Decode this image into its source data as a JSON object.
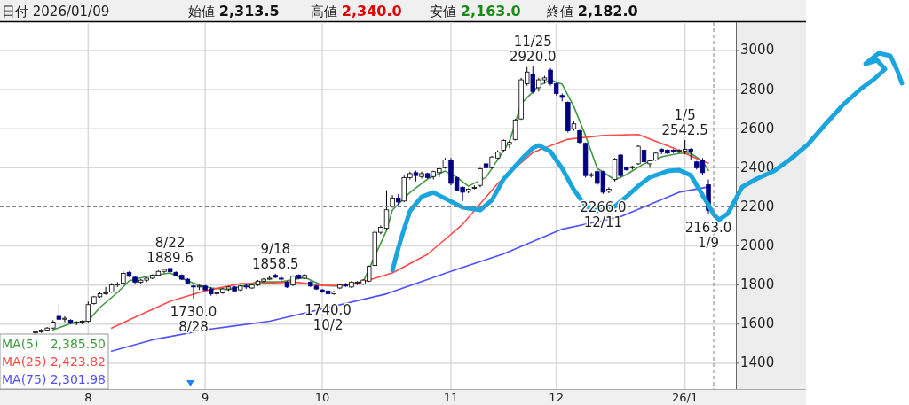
{
  "chart_data": {
    "type": "candlestick",
    "categories": [
      null,
      null,
      null,
      null,
      null,
      null,
      null,
      null,
      null,
      "8",
      null,
      null,
      null,
      null,
      null,
      null,
      null,
      null,
      null,
      null,
      null,
      null,
      null,
      null,
      null,
      null,
      null,
      null,
      null,
      "9",
      null,
      null,
      null,
      null,
      null,
      null,
      null,
      null,
      null,
      null,
      null,
      null,
      null,
      null,
      null,
      null,
      null,
      null,
      null,
      "10",
      null,
      null,
      null,
      null,
      null,
      null,
      null,
      null,
      null,
      null,
      null,
      null,
      null,
      null,
      null,
      null,
      null,
      null,
      null,
      null,
      null,
      "11",
      null,
      null,
      null,
      null,
      null,
      null,
      null,
      null,
      null,
      null,
      null,
      null,
      null,
      null,
      null,
      null,
      null,
      "12",
      null,
      null,
      null,
      null,
      null,
      null,
      null,
      null,
      null,
      null,
      null,
      null,
      null,
      null,
      null,
      null,
      null,
      null,
      null,
      null,
      null,
      "26/1",
      null,
      null,
      null,
      null
    ],
    "ohlc": [
      [
        1555,
        1565,
        1545,
        1560
      ],
      [
        1560,
        1575,
        1555,
        1570
      ],
      [
        1570,
        1585,
        1565,
        1580
      ],
      [
        1580,
        1620,
        1575,
        1610
      ],
      [
        1640,
        1700,
        1620,
        1625
      ],
      [
        1625,
        1640,
        1610,
        1630
      ],
      [
        1620,
        1625,
        1600,
        1605
      ],
      [
        1605,
        1615,
        1595,
        1610
      ],
      [
        1610,
        1620,
        1600,
        1615
      ],
      [
        1615,
        1715,
        1605,
        1700
      ],
      [
        1705,
        1745,
        1700,
        1740
      ],
      [
        1740,
        1765,
        1735,
        1755
      ],
      [
        1755,
        1790,
        1750,
        1760
      ],
      [
        1765,
        1810,
        1760,
        1800
      ],
      [
        1800,
        1815,
        1790,
        1805
      ],
      [
        1810,
        1870,
        1805,
        1860
      ],
      [
        1865,
        1870,
        1840,
        1845
      ],
      [
        1840,
        1845,
        1805,
        1815
      ],
      [
        1815,
        1830,
        1805,
        1825
      ],
      [
        1825,
        1840,
        1815,
        1835
      ],
      [
        1835,
        1855,
        1830,
        1850
      ],
      [
        1850,
        1875,
        1845,
        1870
      ],
      [
        1870,
        1885,
        1860,
        1880
      ],
      [
        1885,
        1889.6,
        1865,
        1868
      ],
      [
        1865,
        1870,
        1845,
        1850
      ],
      [
        1850,
        1855,
        1825,
        1830
      ],
      [
        1830,
        1835,
        1805,
        1810
      ],
      [
        1795,
        1800,
        1730.0,
        1790
      ],
      [
        1790,
        1800,
        1775,
        1795
      ],
      [
        1795,
        1800,
        1770,
        1775
      ],
      [
        1780,
        1790,
        1745,
        1755
      ],
      [
        1755,
        1770,
        1742,
        1760
      ],
      [
        1760,
        1785,
        1755,
        1780
      ],
      [
        1780,
        1795,
        1770,
        1790
      ],
      [
        1790,
        1795,
        1765,
        1770
      ],
      [
        1775,
        1800,
        1770,
        1795
      ],
      [
        1795,
        1805,
        1780,
        1790
      ],
      [
        1785,
        1805,
        1780,
        1800
      ],
      [
        1800,
        1825,
        1795,
        1820
      ],
      [
        1820,
        1835,
        1815,
        1830
      ],
      [
        1830,
        1845,
        1825,
        1835
      ],
      [
        1850,
        1858.5,
        1835,
        1840
      ],
      [
        1835,
        1845,
        1820,
        1830
      ],
      [
        1815,
        1820,
        1785,
        1790
      ],
      [
        1800,
        1850,
        1795,
        1845
      ],
      [
        1850,
        1855,
        1830,
        1835
      ],
      [
        1835,
        1855,
        1830,
        1850
      ],
      [
        1815,
        1820,
        1790,
        1795
      ],
      [
        1795,
        1800,
        1775,
        1780
      ],
      [
        1775,
        1780,
        1760,
        1765
      ],
      [
        1770,
        1775,
        1740.0,
        1755
      ],
      [
        1755,
        1770,
        1750,
        1765
      ],
      [
        1785,
        1805,
        1780,
        1800
      ],
      [
        1800,
        1810,
        1790,
        1795
      ],
      [
        1790,
        1820,
        1785,
        1815
      ],
      [
        1810,
        1820,
        1800,
        1815
      ],
      [
        1805,
        1830,
        1800,
        1825
      ],
      [
        1820,
        1900,
        1815,
        1895
      ],
      [
        1900,
        2080,
        1895,
        2070
      ],
      [
        2070,
        2105,
        2060,
        2095
      ],
      [
        2090,
        2285,
        2080,
        2185
      ],
      [
        2200,
        2260,
        2195,
        2245
      ],
      [
        2245,
        2265,
        2210,
        2225
      ],
      [
        2230,
        2360,
        2225,
        2350
      ],
      [
        2350,
        2380,
        2340,
        2370
      ],
      [
        2375,
        2385,
        2330,
        2360
      ],
      [
        2355,
        2380,
        2345,
        2370
      ],
      [
        2370,
        2375,
        2345,
        2350
      ],
      [
        2355,
        2385,
        2340,
        2380
      ],
      [
        2375,
        2400,
        2350,
        2395
      ],
      [
        2400,
        2450,
        2395,
        2440
      ],
      [
        2440,
        2450,
        2310,
        2320
      ],
      [
        2350,
        2355,
        2280,
        2285
      ],
      [
        2300,
        2305,
        2230,
        2275
      ],
      [
        2280,
        2295,
        2270,
        2290
      ],
      [
        2295,
        2310,
        2290,
        2300
      ],
      [
        2310,
        2400,
        2300,
        2395
      ],
      [
        2420,
        2430,
        2390,
        2400
      ],
      [
        2400,
        2460,
        2395,
        2455
      ],
      [
        2450,
        2490,
        2445,
        2480
      ],
      [
        2490,
        2545,
        2485,
        2540
      ],
      [
        2520,
        2540,
        2500,
        2530
      ],
      [
        2545,
        2650,
        2540,
        2645
      ],
      [
        2650,
        2860,
        2645,
        2850
      ],
      [
        2830,
        2915,
        2820,
        2890
      ],
      [
        2880,
        2920.0,
        2780,
        2790
      ],
      [
        2810,
        2860,
        2790,
        2850
      ],
      [
        2850,
        2870,
        2830,
        2860
      ],
      [
        2900,
        2910,
        2820,
        2830
      ],
      [
        2830,
        2835,
        2770,
        2780
      ],
      [
        2770,
        2780,
        2740,
        2760
      ],
      [
        2735,
        2740,
        2580,
        2590
      ],
      [
        2600,
        2640,
        2590,
        2625
      ],
      [
        2590,
        2595,
        2520,
        2530
      ],
      [
        2525,
        2530,
        2350,
        2360
      ],
      [
        2360,
        2375,
        2350,
        2365
      ],
      [
        2380,
        2390,
        2310,
        2320
      ],
      [
        2380,
        2385,
        2266.0,
        2275
      ],
      [
        2280,
        2300,
        2270,
        2290
      ],
      [
        2340,
        2450,
        2330,
        2445
      ],
      [
        2465,
        2470,
        2350,
        2360
      ],
      [
        2400,
        2405,
        2385,
        2390
      ],
      [
        2400,
        2410,
        2390,
        2405
      ],
      [
        2420,
        2515,
        2415,
        2510
      ],
      [
        2490,
        2495,
        2420,
        2430
      ],
      [
        2420,
        2440,
        2400,
        2435
      ],
      [
        2440,
        2480,
        2435,
        2475
      ],
      [
        2495,
        2500,
        2470,
        2480
      ],
      [
        2490,
        2495,
        2470,
        2475
      ],
      [
        2490,
        2495,
        2475,
        2485
      ],
      [
        2485,
        2495,
        2475,
        2490
      ],
      [
        2485,
        2542.5,
        2470,
        2495
      ],
      [
        2495,
        2500,
        2440,
        2480
      ],
      [
        2430,
        2435,
        2390,
        2400
      ],
      [
        2440,
        2450,
        2360,
        2375
      ],
      [
        2313.5,
        2340.0,
        2163.0,
        2182.0
      ]
    ],
    "series": [
      {
        "name": "MA(5) 2,385.50",
        "color": "#3f9a3f",
        "type": "line",
        "values": [
          null,
          null,
          null,
          1571,
          null,
          null,
          1603,
          null,
          null,
          1617,
          null,
          1685,
          null,
          null,
          1762,
          null,
          1821,
          null,
          null,
          1844,
          null,
          null,
          null,
          1862,
          null,
          null,
          1821,
          null,
          1798,
          null,
          1785,
          null,
          null,
          1776,
          null,
          null,
          null,
          null,
          1816,
          null,
          null,
          null,
          1816,
          null,
          null,
          null,
          1839,
          null,
          null,
          1798,
          null,
          null,
          1794,
          null,
          null,
          null,
          1816,
          null,
          null,
          null,
          2080,
          2184,
          null,
          null,
          2274,
          null,
          null,
          2342,
          null,
          null,
          2383,
          null,
          2351,
          null,
          2306,
          null,
          null,
          2351,
          null,
          2442,
          null,
          2533,
          null,
          2728,
          null,
          null,
          2819,
          null,
          2850,
          null,
          2828,
          null,
          2714,
          null,
          2565,
          null,
          2397,
          null,
          null,
          2338,
          null,
          2365,
          null,
          null,
          2420,
          null,
          null,
          2456,
          null,
          null,
          2474,
          null,
          2474,
          null,
          2433,
          2386
        ]
      },
      {
        "name": "MA(25) 2,423.82",
        "color": "#ff4a4a",
        "type": "line",
        "values": [
          null,
          null,
          null,
          null,
          null,
          null,
          null,
          null,
          null,
          null,
          null,
          null,
          null,
          1580,
          null,
          null,
          null,
          1635,
          null,
          null,
          null,
          null,
          null,
          1717,
          null,
          null,
          null,
          null,
          null,
          1771,
          null,
          null,
          null,
          null,
          null,
          1807,
          null,
          null,
          1807,
          null,
          null,
          null,
          null,
          null,
          1816,
          null,
          null,
          null,
          null,
          1798,
          null,
          null,
          1798,
          null,
          null,
          null,
          1816,
          null,
          null,
          null,
          null,
          1862,
          null,
          null,
          null,
          null,
          null,
          1957,
          null,
          null,
          null,
          null,
          null,
          2111,
          null,
          null,
          null,
          null,
          null,
          2320,
          null,
          null,
          null,
          null,
          null,
          2478,
          null,
          null,
          null,
          null,
          null,
          2546,
          null,
          null,
          null,
          null,
          null,
          2565,
          null,
          null,
          null,
          null,
          null,
          2570,
          null,
          null,
          null,
          null,
          null,
          2501,
          null,
          null,
          null,
          null,
          2433,
          2424
        ]
      },
      {
        "name": "MA(75) 2,301.98",
        "color": "#5050ff",
        "type": "line",
        "values": [
          null,
          null,
          null,
          null,
          null,
          null,
          null,
          null,
          null,
          null,
          null,
          null,
          null,
          1462,
          null,
          null,
          null,
          null,
          null,
          null,
          1520,
          null,
          null,
          null,
          null,
          null,
          null,
          null,
          null,
          null,
          1575,
          null,
          null,
          null,
          null,
          null,
          null,
          null,
          null,
          null,
          1615,
          null,
          null,
          null,
          null,
          null,
          null,
          null,
          null,
          null,
          null,
          null,
          null,
          null,
          null,
          null,
          null,
          null,
          null,
          null,
          1755,
          null,
          null,
          null,
          null,
          null,
          null,
          null,
          null,
          null,
          1860,
          null,
          null,
          null,
          null,
          null,
          null,
          null,
          null,
          null,
          1960,
          null,
          null,
          null,
          null,
          null,
          null,
          null,
          null,
          null,
          2086,
          null,
          null,
          null,
          null,
          null,
          null,
          null,
          null,
          null,
          2150,
          null,
          null,
          null,
          null,
          null,
          null,
          null,
          null,
          null,
          2275,
          null,
          null,
          null,
          null,
          2302
        ]
      },
      {
        "color": "#1aa5df",
        "type": "line",
        "values": [
          null,
          null,
          null,
          null,
          null,
          null,
          null,
          null,
          null,
          null,
          null,
          null,
          null,
          null,
          null,
          null,
          null,
          null,
          null,
          null,
          null,
          null,
          null,
          null,
          null,
          null,
          null,
          null,
          null,
          null,
          null,
          null,
          null,
          null,
          null,
          null,
          null,
          null,
          null,
          null,
          null,
          null,
          null,
          null,
          null,
          null,
          null,
          null,
          null,
          null,
          null,
          null,
          null,
          null,
          null,
          null,
          null,
          null,
          null,
          null,
          null,
          1875,
          1989,
          2088,
          2179,
          null,
          2252,
          null,
          2274,
          null,
          2243,
          null,
          null,
          2197,
          null,
          null,
          2184,
          null,
          2234,
          null,
          2342,
          null,
          null,
          2442,
          null,
          2501,
          2515,
          null,
          2483,
          null,
          2397,
          null,
          2288,
          null,
          2206,
          null,
          2179,
          null,
          null,
          2202,
          null,
          2252,
          null,
          2306,
          null,
          2351,
          null,
          null,
          2383,
          null,
          2388,
          null,
          2361,
          null,
          2261,
          null
        ]
      }
    ],
    "ylim": [
      1268,
      3145
    ],
    "yticks": [
      1400,
      1600,
      1800,
      2000,
      2200,
      2400,
      2600,
      2800,
      3000
    ],
    "grid": true,
    "legend": "bottom left",
    "line_style": "solid",
    "ref_lines": [
      {
        "axis": "y",
        "value": 2200,
        "color": "#808080",
        "line_style": "dashed"
      }
    ],
    "annotations": [
      "日付 2026/01/09",
      "始値 2,313.5",
      "高値 2,340.0",
      "安値 2,163.0",
      "終値 2,182.0",
      {
        "text": "8/22\n1889.6",
        "y": 1889.6
      },
      {
        "text": "1730.0\n8/28",
        "y": 1730.0
      },
      {
        "text": "9/18\n1858.5",
        "y": 1858.5
      },
      {
        "text": "1740.0\n10/2",
        "y": 1740.0
      },
      {
        "text": "11/25\n2920.0",
        "y": 2920.0
      },
      {
        "text": "2266.0\n12/11",
        "y": 2266.0
      },
      {
        "text": "1/5\n2542.5",
        "y": 2542.5
      },
      {
        "text": "2163.0\n1/9",
        "y": 2163.0
      }
    ]
  }
}
